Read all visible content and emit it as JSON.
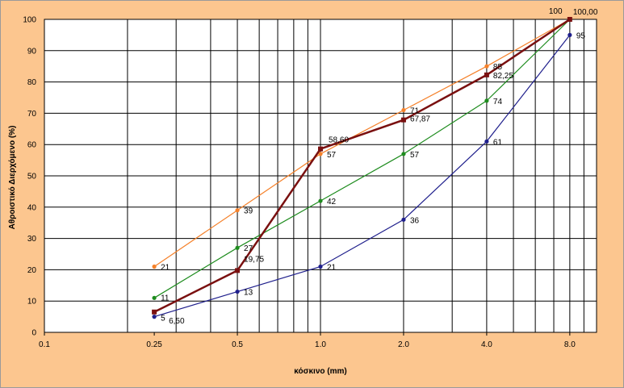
{
  "chart_data": {
    "type": "line",
    "xscale": "log",
    "xlabel": "κόσκινο (mm)",
    "ylabel": "Αθροιστικό Διερχόμενο (%)",
    "xlim": [
      0.1,
      10
    ],
    "ylim": [
      0,
      100
    ],
    "y_ticks": [
      "0",
      "10",
      "20",
      "30",
      "40",
      "50",
      "60",
      "70",
      "80",
      "90",
      "100"
    ],
    "x_ticks": [
      {
        "value": 0.1,
        "label": "0.1"
      },
      {
        "value": 0.25,
        "label": "0.25"
      },
      {
        "value": 0.5,
        "label": "0.5"
      },
      {
        "value": 1.0,
        "label": "1.0"
      },
      {
        "value": 2.0,
        "label": "2.0"
      },
      {
        "value": 4.0,
        "label": "4.0"
      },
      {
        "value": 8.0,
        "label": "8.0"
      }
    ],
    "grid": true,
    "x": [
      0.25,
      0.5,
      1.0,
      2.0,
      4.0,
      8.0
    ],
    "series": [
      {
        "color": "#f5812a",
        "marker": "circle",
        "values": [
          21,
          39,
          57,
          71,
          85,
          100
        ],
        "labels": [
          "21",
          "39",
          "57",
          "71",
          "85",
          "100"
        ]
      },
      {
        "color": "#1e8c1e",
        "marker": "circle",
        "values": [
          11,
          27,
          42,
          57,
          74,
          100
        ],
        "labels": [
          "11",
          "27",
          "42",
          "57",
          "74",
          ""
        ]
      },
      {
        "color": "#1f1f8c",
        "marker": "circle",
        "values": [
          5,
          13,
          21,
          36,
          61,
          95
        ],
        "labels": [
          "5",
          "13",
          "21",
          "36",
          "61",
          "95"
        ]
      },
      {
        "color": "#7a1010",
        "marker": "square",
        "values": [
          6.5,
          19.75,
          58.6,
          67.87,
          82.25,
          100.0
        ],
        "labels": [
          "6,50",
          "19,75",
          "58,60",
          "67,87",
          "82,25",
          "100,00"
        ]
      }
    ]
  }
}
